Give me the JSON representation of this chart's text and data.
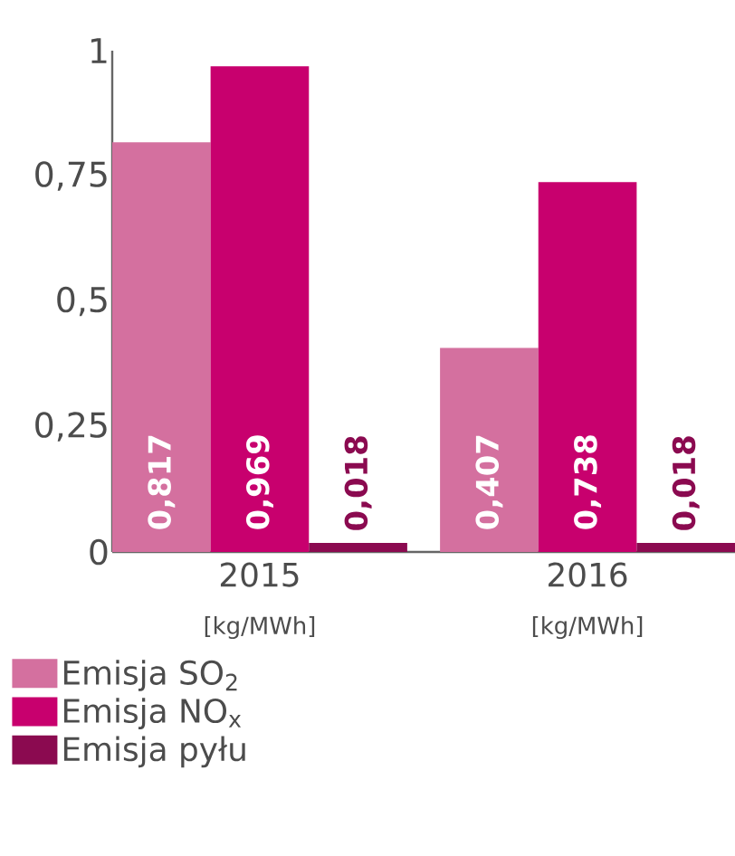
{
  "chart_data": {
    "type": "bar",
    "categories": [
      "2015",
      "2016"
    ],
    "series": [
      {
        "name": "Emisja SO$_{2}$",
        "color": "#d4709f",
        "values": [
          0.817,
          0.407
        ],
        "value_labels": [
          "0,817",
          "0,407"
        ]
      },
      {
        "name": "Emisja NO$_{x}$",
        "color": "#c8006e",
        "values": [
          0.969,
          0.738
        ],
        "value_labels": [
          "0,969",
          "0,738"
        ]
      },
      {
        "name": "Emisja pyłu",
        "color": "#8b0a50",
        "values": [
          0.018,
          0.018
        ],
        "value_labels": [
          "0,018",
          "0,018"
        ]
      }
    ],
    "annotations": [
      "[kg/MWh]",
      "[kg/MWh]"
    ],
    "ylim": [
      0,
      1
    ],
    "yticks": [
      {
        "value": 0,
        "label": "0"
      },
      {
        "value": 0.25,
        "label": "0,25"
      },
      {
        "value": 0.5,
        "label": "0,5"
      },
      {
        "value": 0.75,
        "label": "0,75"
      },
      {
        "value": 1,
        "label": "1"
      }
    ],
    "legend": "bottom left"
  }
}
